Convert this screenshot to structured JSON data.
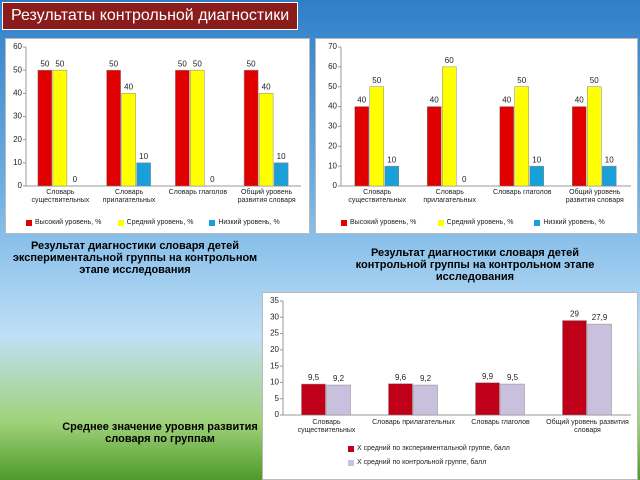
{
  "title": "Результаты контрольной диагностики",
  "captions": [
    "Результат диагностики словаря детей экспериментальной группы на контрольном этапе исследования",
    "Результат диагностики словаря детей контрольной группы на контрольном этапе исследования",
    "Среднее значение уровня развития словаря по группам"
  ],
  "chart_data": [
    {
      "type": "bar",
      "categories": [
        "Словарь существительных",
        "Словарь прилагательных",
        "Словарь глаголов",
        "Общий уровень развития словаря"
      ],
      "series": [
        {
          "name": "Высокий уровень, %",
          "color": "#e00000",
          "values": [
            50,
            50,
            50,
            50
          ]
        },
        {
          "name": "Средний уровень, %",
          "color": "#ffff00",
          "values": [
            50,
            40,
            50,
            40
          ]
        },
        {
          "name": "Низкий уровень, %",
          "color": "#1aa0d8",
          "values": [
            0,
            10,
            0,
            10
          ]
        }
      ],
      "ylim": [
        0,
        60
      ],
      "yticks": [
        0,
        10,
        20,
        30,
        40,
        50,
        60
      ],
      "grid": false,
      "legend": "bottom"
    },
    {
      "type": "bar",
      "categories": [
        "Словарь существительных",
        "Словарь прилагательных",
        "Словарь глаголов",
        "Общий уровень развития словаря"
      ],
      "series": [
        {
          "name": "Высокий уровень, %",
          "color": "#e00000",
          "values": [
            40,
            40,
            40,
            40
          ]
        },
        {
          "name": "Средний уровень, %",
          "color": "#ffff00",
          "values": [
            50,
            60,
            50,
            50
          ]
        },
        {
          "name": "Низкий уровень, %",
          "color": "#1aa0d8",
          "values": [
            10,
            0,
            10,
            10
          ]
        }
      ],
      "ylim": [
        0,
        70
      ],
      "yticks": [
        0,
        10,
        20,
        30,
        40,
        50,
        60,
        70
      ],
      "grid": false,
      "legend": "bottom"
    },
    {
      "type": "bar",
      "categories": [
        "Словарь существительных",
        "Словарь прилагательных",
        "Словарь глаголов",
        "Общий уровень развития словаря"
      ],
      "series": [
        {
          "name": "X средний по экспериментальной группе, балл",
          "color": "#c00018",
          "values": [
            9.5,
            9.6,
            9.9,
            29
          ],
          "value_labels": [
            "9,5",
            "9,6",
            "9,9",
            "29"
          ]
        },
        {
          "name": "X средний по контрольной группе, балл",
          "color": "#c8c0dc",
          "values": [
            9.2,
            9.2,
            9.5,
            27.9
          ],
          "value_labels": [
            "9,2",
            "9,2",
            "9,5",
            "27,9"
          ]
        }
      ],
      "ylim": [
        0,
        35
      ],
      "yticks": [
        0,
        5,
        10,
        15,
        20,
        25,
        30,
        35
      ],
      "grid": false,
      "legend": "bottom-stacked"
    }
  ]
}
